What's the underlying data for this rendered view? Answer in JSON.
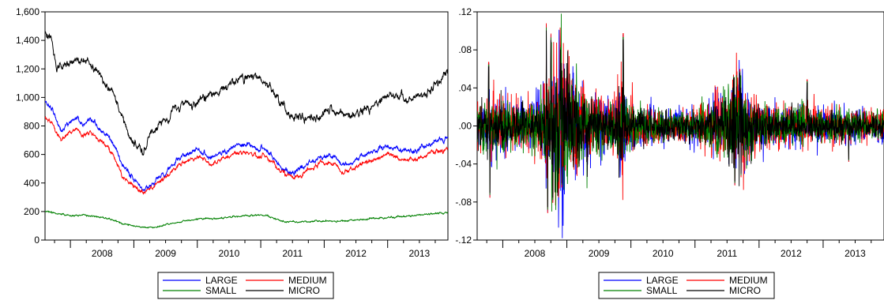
{
  "chart_data": [
    {
      "type": "line",
      "title": "",
      "xlabel": "",
      "ylabel": "",
      "ylim": [
        0,
        1600
      ],
      "y_ticks": [
        0,
        200,
        400,
        600,
        800,
        1000,
        1200,
        1400,
        1600
      ],
      "y_tick_labels": [
        "0",
        "200",
        "400",
        "600",
        "800",
        "1,000",
        "1,200",
        "1,400",
        "1,600"
      ],
      "x_range": [
        2007.6,
        2013.95
      ],
      "x_year_labels": [
        "2008",
        "2009",
        "2010",
        "2011",
        "2012",
        "2013"
      ],
      "grid": false,
      "legend_position": "bottom-center",
      "series": [
        {
          "name": "LARGE",
          "color": "#0000ff",
          "noise": 6,
          "x": [
            2007.6,
            2007.72,
            2007.85,
            2008.0,
            2008.1,
            2008.2,
            2008.35,
            2008.5,
            2008.6,
            2008.72,
            2008.8,
            2008.88,
            2008.95,
            2009.05,
            2009.15,
            2009.3,
            2009.5,
            2009.7,
            2009.9,
            2010.0,
            2010.2,
            2010.4,
            2010.6,
            2010.8,
            2010.95,
            2011.05,
            2011.15,
            2011.3,
            2011.5,
            2011.65,
            2011.8,
            2011.95,
            2012.15,
            2012.3,
            2012.5,
            2012.7,
            2012.85,
            2013.0,
            2013.2,
            2013.4,
            2013.6,
            2013.75,
            2013.9,
            2013.95
          ],
          "y": [
            970,
            920,
            760,
            830,
            860,
            800,
            830,
            760,
            720,
            640,
            540,
            500,
            450,
            400,
            350,
            400,
            480,
            560,
            620,
            640,
            580,
            620,
            660,
            660,
            640,
            650,
            600,
            520,
            470,
            500,
            550,
            600,
            580,
            520,
            560,
            600,
            640,
            660,
            630,
            620,
            650,
            690,
            710,
            720
          ]
        },
        {
          "name": "MEDIUM",
          "color": "#ff0000",
          "noise": 5,
          "x": [
            2007.6,
            2007.72,
            2007.85,
            2008.0,
            2008.1,
            2008.2,
            2008.35,
            2008.5,
            2008.6,
            2008.72,
            2008.8,
            2008.88,
            2008.95,
            2009.05,
            2009.15,
            2009.3,
            2009.5,
            2009.7,
            2009.9,
            2010.0,
            2010.2,
            2010.4,
            2010.6,
            2010.8,
            2010.95,
            2011.05,
            2011.15,
            2011.3,
            2011.5,
            2011.65,
            2011.8,
            2011.95,
            2012.15,
            2012.3,
            2012.5,
            2012.7,
            2012.85,
            2013.0,
            2013.2,
            2013.4,
            2013.6,
            2013.75,
            2013.9,
            2013.95
          ],
          "y": [
            860,
            820,
            700,
            760,
            780,
            730,
            750,
            690,
            650,
            560,
            460,
            420,
            390,
            370,
            330,
            370,
            440,
            520,
            570,
            590,
            530,
            570,
            610,
            610,
            590,
            600,
            560,
            490,
            440,
            460,
            510,
            550,
            530,
            470,
            510,
            550,
            580,
            600,
            570,
            560,
            590,
            620,
            630,
            635
          ]
        },
        {
          "name": "SMALL",
          "color": "#008000",
          "noise": 2,
          "x": [
            2007.6,
            2007.8,
            2008.0,
            2008.2,
            2008.4,
            2008.6,
            2008.8,
            2009.0,
            2009.2,
            2009.4,
            2009.6,
            2009.8,
            2010.0,
            2010.3,
            2010.6,
            2010.9,
            2011.1,
            2011.3,
            2011.6,
            2011.9,
            2012.2,
            2012.5,
            2012.8,
            2013.1,
            2013.4,
            2013.7,
            2013.95
          ],
          "y": [
            200,
            185,
            170,
            175,
            165,
            150,
            120,
            100,
            85,
            95,
            115,
            135,
            150,
            150,
            165,
            175,
            170,
            140,
            125,
            135,
            130,
            140,
            150,
            160,
            170,
            185,
            195
          ]
        },
        {
          "name": "MICRO",
          "color": "#000000",
          "noise": 10,
          "x": [
            2007.6,
            2007.65,
            2007.72,
            2007.78,
            2007.85,
            2008.0,
            2008.15,
            2008.3,
            2008.45,
            2008.55,
            2008.65,
            2008.75,
            2008.85,
            2008.95,
            2009.05,
            2009.15,
            2009.25,
            2009.4,
            2009.55,
            2009.7,
            2009.85,
            2010.0,
            2010.15,
            2010.3,
            2010.5,
            2010.7,
            2010.85,
            2010.95,
            2011.05,
            2011.15,
            2011.3,
            2011.5,
            2011.65,
            2011.8,
            2011.95,
            2012.1,
            2012.3,
            2012.5,
            2012.7,
            2012.85,
            2013.0,
            2013.2,
            2013.4,
            2013.55,
            2013.7,
            2013.8,
            2013.9,
            2013.95
          ],
          "y": [
            1450,
            1430,
            1380,
            1200,
            1220,
            1250,
            1270,
            1250,
            1180,
            1100,
            1050,
            950,
            820,
            720,
            650,
            620,
            740,
            800,
            870,
            940,
            960,
            960,
            990,
            1030,
            1080,
            1130,
            1150,
            1140,
            1120,
            1090,
            950,
            880,
            870,
            860,
            880,
            900,
            860,
            880,
            920,
            950,
            1030,
            1000,
            980,
            1020,
            1060,
            1120,
            1180,
            1190
          ]
        }
      ]
    },
    {
      "type": "line",
      "title": "",
      "xlabel": "",
      "ylabel": "",
      "ylim": [
        -0.12,
        0.12
      ],
      "y_ticks": [
        -0.12,
        -0.08,
        -0.04,
        0.0,
        0.04,
        0.08,
        0.12
      ],
      "y_tick_labels": [
        "-.12",
        "-.08",
        "-.04",
        ".00",
        ".04",
        ".08",
        ".12"
      ],
      "x_range": [
        2007.6,
        2013.95
      ],
      "x_year_labels": [
        "2008",
        "2009",
        "2010",
        "2011",
        "2012",
        "2013"
      ],
      "grid": false,
      "legend_position": "bottom-center",
      "volatility": {
        "x": [
          2007.6,
          2007.8,
          2008.0,
          2008.2,
          2008.4,
          2008.6,
          2008.7,
          2008.8,
          2008.9,
          2009.0,
          2009.1,
          2009.3,
          2009.5,
          2009.7,
          2009.8,
          2009.85,
          2009.9,
          2010.0,
          2010.3,
          2010.6,
          2010.9,
          2011.0,
          2011.2,
          2011.5,
          2011.6,
          2011.7,
          2011.8,
          2011.9,
          2012.0,
          2012.3,
          2012.6,
          2012.9,
          2013.2,
          2013.5,
          2013.7,
          2013.95
        ],
        "level": [
          0.012,
          0.016,
          0.014,
          0.011,
          0.012,
          0.017,
          0.026,
          0.038,
          0.045,
          0.04,
          0.028,
          0.022,
          0.016,
          0.012,
          0.018,
          0.03,
          0.018,
          0.012,
          0.01,
          0.008,
          0.008,
          0.009,
          0.012,
          0.018,
          0.026,
          0.028,
          0.022,
          0.016,
          0.012,
          0.01,
          0.01,
          0.009,
          0.009,
          0.009,
          0.008,
          0.008
        ]
      },
      "extremes": [
        {
          "x": 2007.78,
          "y": 0.062
        },
        {
          "x": 2007.8,
          "y": -0.07
        },
        {
          "x": 2008.68,
          "y": 0.1
        },
        {
          "x": 2008.7,
          "y": -0.085
        },
        {
          "x": 2008.75,
          "y": 0.09
        },
        {
          "x": 2008.78,
          "y": -0.075
        },
        {
          "x": 2008.9,
          "y": 0.08
        },
        {
          "x": 2008.92,
          "y": -0.06
        },
        {
          "x": 2009.88,
          "y": 0.09
        },
        {
          "x": 2011.6,
          "y": 0.05
        },
        {
          "x": 2011.62,
          "y": -0.058
        },
        {
          "x": 2011.7,
          "y": 0.055
        },
        {
          "x": 2011.72,
          "y": -0.05
        },
        {
          "x": 2012.75,
          "y": 0.045
        },
        {
          "x": 2013.4,
          "y": -0.035
        }
      ],
      "series": [
        {
          "name": "LARGE",
          "color": "#0000ff",
          "scale": 1.05
        },
        {
          "name": "MEDIUM",
          "color": "#ff0000",
          "scale": 1.1
        },
        {
          "name": "SMALL",
          "color": "#008000",
          "scale": 0.95
        },
        {
          "name": "MICRO",
          "color": "#000000",
          "scale": 0.85
        }
      ]
    }
  ],
  "legend": {
    "items": [
      {
        "label": "LARGE",
        "color": "#0000ff"
      },
      {
        "label": "MEDIUM",
        "color": "#ff0000"
      },
      {
        "label": "SMALL",
        "color": "#008000"
      },
      {
        "label": "MICRO",
        "color": "#000000"
      }
    ]
  }
}
